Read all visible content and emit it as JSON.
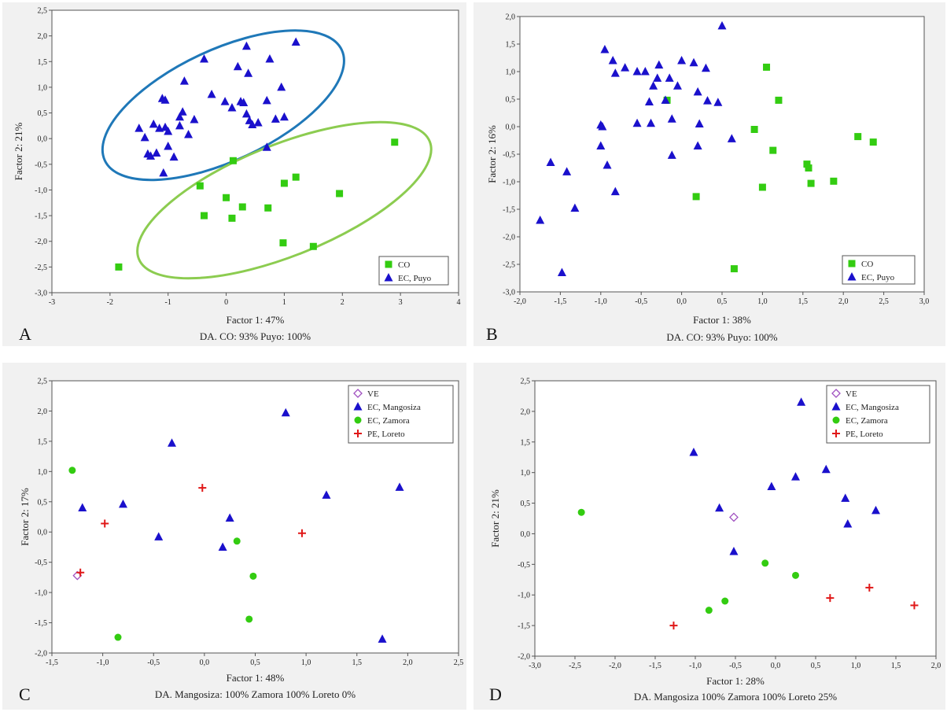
{
  "colors": {
    "green": "#33cc11",
    "blue": "#1a10cc",
    "purple": "#a050c0",
    "red": "#e01818",
    "ellipse_blue": "#1f78b8",
    "ellipse_green": "#8ccc50"
  },
  "chart_data": [
    {
      "panel_label": "A",
      "type": "scatter",
      "xlabel": "Factor 1: 47%",
      "ylabel": "Factor 2: 21%",
      "subtitle": "DA. CO: 93%   Puyo: 100%",
      "xlim": [
        -3,
        4
      ],
      "ylim": [
        -3.0,
        2.5
      ],
      "xticks": [
        "-3",
        "-2",
        "-1",
        "0",
        "1",
        "2",
        "3",
        "4"
      ],
      "yticks": [
        "-3,0",
        "-2,5",
        "-2,0",
        "-1,5",
        "-1,0",
        "-0,5",
        "0,0",
        "0,5",
        "1,0",
        "1,5",
        "2,0",
        "2,5"
      ],
      "legend": {
        "position": "bottom-right",
        "entries": [
          "CO",
          "EC, Puyo"
        ]
      },
      "series": [
        {
          "name": "CO",
          "marker": "square",
          "color": "#33cc11",
          "x": [
            2.9,
            0.12,
            -0.45,
            0.0,
            1.0,
            1.2,
            1.95,
            0.28,
            -0.38,
            0.1,
            0.72,
            0.98,
            1.5,
            -1.85
          ],
          "y": [
            -0.07,
            -0.43,
            -0.92,
            -1.15,
            -0.87,
            -0.75,
            -1.07,
            -1.33,
            -1.5,
            -1.55,
            -1.35,
            -2.03,
            -2.1,
            -2.5
          ]
        },
        {
          "name": "EC, Puyo",
          "marker": "triangle",
          "color": "#1a10cc",
          "x": [
            -1.5,
            -1.4,
            -1.35,
            -1.3,
            -1.25,
            -1.1,
            -1.05,
            -1.0,
            -1.08,
            -0.9,
            -0.8,
            -0.75,
            -0.72,
            -0.65,
            -0.55,
            -0.38,
            -0.25,
            -0.02,
            0.1,
            0.25,
            0.3,
            0.35,
            0.4,
            0.45,
            0.55,
            0.7,
            0.75,
            0.85,
            0.95,
            1.0,
            1.2,
            0.2,
            0.35,
            -1.05,
            0.7,
            -1.15,
            -1.2,
            -1.0,
            -0.8,
            0.38
          ],
          "y": [
            0.2,
            0.02,
            -0.3,
            -0.34,
            0.28,
            0.78,
            0.75,
            0.14,
            -0.67,
            -0.36,
            0.42,
            0.52,
            1.12,
            0.08,
            0.37,
            1.55,
            0.86,
            0.72,
            0.6,
            0.72,
            0.7,
            0.48,
            0.35,
            0.27,
            0.31,
            0.74,
            1.55,
            0.38,
            1.0,
            0.42,
            1.88,
            1.4,
            1.8,
            0.22,
            -0.17,
            0.2,
            -0.28,
            -0.15,
            0.25,
            1.27
          ]
        }
      ],
      "ellipses": [
        {
          "color": "#1f78b8",
          "cx": -0.05,
          "cy": 0.65,
          "rx": 2.25,
          "ry": 1.08,
          "angle": 25
        },
        {
          "color": "#8ccc50",
          "cx": 1.0,
          "cy": -1.2,
          "rx": 2.7,
          "ry": 1.08,
          "angle": 22
        }
      ]
    },
    {
      "panel_label": "B",
      "type": "scatter",
      "xlabel": "Factor 1: 38%",
      "ylabel": "Factor 2: 16%",
      "subtitle": "DA. CO: 93%   Puyo: 100%",
      "xlim": [
        -2.0,
        3.0
      ],
      "ylim": [
        -3.0,
        2.0
      ],
      "xticks": [
        "-2,0",
        "-1,5",
        "-1,0",
        "-0,5",
        "0,0",
        "0,5",
        "1,0",
        "1,5",
        "2,0",
        "2,5",
        "3,0"
      ],
      "yticks": [
        "-3,0",
        "-2,5",
        "-2,0",
        "-1,5",
        "-1,0",
        "-0,5",
        "0,0",
        "0,5",
        "1,0",
        "1,5",
        "2,0"
      ],
      "legend": {
        "position": "bottom-right",
        "entries": [
          "CO",
          "EC, Puyo"
        ]
      },
      "series": [
        {
          "name": "CO",
          "marker": "square",
          "color": "#33cc11",
          "x": [
            1.05,
            1.2,
            -0.18,
            0.9,
            1.13,
            2.18,
            2.37,
            1.55,
            1.57,
            1.6,
            1.88,
            1.0,
            0.18,
            0.65
          ],
          "y": [
            1.08,
            0.48,
            0.48,
            -0.05,
            -0.43,
            -0.18,
            -0.28,
            -0.68,
            -0.75,
            -1.03,
            -0.99,
            -1.1,
            -1.27,
            -2.58
          ]
        },
        {
          "name": "EC, Puyo",
          "marker": "triangle",
          "color": "#1a10cc",
          "x": [
            0.5,
            -0.95,
            -0.85,
            -0.82,
            -0.7,
            -0.55,
            -0.45,
            -0.3,
            -0.28,
            -0.15,
            -0.05,
            0.0,
            0.15,
            0.3,
            -0.35,
            -0.4,
            -0.2,
            0.2,
            0.32,
            0.45,
            -1.0,
            -0.98,
            -0.92,
            -0.55,
            -0.38,
            -0.12,
            -0.12,
            0.22,
            0.2,
            0.62,
            -1.42,
            -1.62,
            -1.32,
            -0.82,
            -1.75,
            -1.48,
            -1.0
          ],
          "y": [
            1.83,
            1.4,
            1.2,
            0.97,
            1.07,
            1.0,
            1.0,
            0.88,
            1.12,
            0.88,
            0.74,
            1.2,
            1.16,
            1.06,
            0.74,
            0.45,
            0.48,
            0.63,
            0.47,
            0.44,
            0.03,
            0.0,
            -0.7,
            0.06,
            0.06,
            0.14,
            -0.52,
            0.05,
            -0.35,
            -0.22,
            -0.82,
            -0.65,
            -1.48,
            -1.18,
            -1.7,
            -2.65,
            -0.35
          ]
        }
      ]
    },
    {
      "panel_label": "C",
      "type": "scatter",
      "xlabel": "Factor 1: 48%",
      "ylabel": "Factor 2: 17%",
      "subtitle": "DA. Mangosiza: 100%   Zamora 100%   Loreto 0%",
      "xlim": [
        -1.5,
        2.5
      ],
      "ylim": [
        -2.0,
        2.5
      ],
      "xticks": [
        "-1,5",
        "-1,0",
        "-0,5",
        "0,0",
        "0,5",
        "1,0",
        "1,5",
        "2,0",
        "2,5"
      ],
      "yticks": [
        "-2,0",
        "-1,5",
        "-1,0",
        "-0,5",
        "0,0",
        "0,5",
        "1,0",
        "1,5",
        "2,0",
        "2,5"
      ],
      "legend": {
        "position": "top-right",
        "entries": [
          "VE",
          "EC, Mangosiza",
          "EC, Zamora",
          "PE, Loreto"
        ]
      },
      "series": [
        {
          "name": "VE",
          "marker": "diamond",
          "color": "#a050c0",
          "x": [
            -1.25
          ],
          "y": [
            -0.72
          ]
        },
        {
          "name": "EC, Mangosiza",
          "marker": "triangle",
          "color": "#1a10cc",
          "x": [
            0.8,
            -0.32,
            -1.2,
            -0.8,
            -0.45,
            0.18,
            0.25,
            1.2,
            1.92,
            1.75
          ],
          "y": [
            1.97,
            1.47,
            0.4,
            0.46,
            -0.08,
            -0.25,
            0.23,
            0.61,
            0.74,
            -1.77
          ]
        },
        {
          "name": "EC, Zamora",
          "marker": "circle",
          "color": "#33cc11",
          "x": [
            -1.3,
            0.32,
            0.48,
            0.44,
            -0.85
          ],
          "y": [
            1.02,
            -0.15,
            -0.73,
            -1.44,
            -1.74
          ]
        },
        {
          "name": "PE, Loreto",
          "marker": "cross",
          "color": "#e01818",
          "x": [
            -0.02,
            -0.98,
            0.96,
            -1.22
          ],
          "y": [
            0.73,
            0.14,
            -0.02,
            -0.67
          ]
        }
      ]
    },
    {
      "panel_label": "D",
      "type": "scatter",
      "xlabel": "Factor 1: 28%",
      "ylabel": "Factor 2: 21%",
      "subtitle": "DA. Mangosiza 100%  Zamora 100%  Loreto 25%",
      "xlim": [
        -3.0,
        2.0
      ],
      "ylim": [
        -2.0,
        2.5
      ],
      "xticks": [
        "-3,0",
        "-2,5",
        "-2,0",
        "-1,5",
        "-1,0",
        "-0,5",
        "0,0",
        "0,5",
        "1,0",
        "1,5",
        "2,0"
      ],
      "yticks": [
        "-2,0",
        "-1,5",
        "-1,0",
        "-0,5",
        "0,0",
        "0,5",
        "1,0",
        "1,5",
        "2,0",
        "2,5"
      ],
      "legend": {
        "position": "top-right",
        "entries": [
          "VE",
          "EC, Mangosiza",
          "EC, Zamora",
          "PE, Loreto"
        ]
      },
      "series": [
        {
          "name": "VE",
          "marker": "diamond",
          "color": "#a050c0",
          "x": [
            -0.52
          ],
          "y": [
            0.27
          ]
        },
        {
          "name": "EC, Mangosiza",
          "marker": "triangle",
          "color": "#1a10cc",
          "x": [
            0.32,
            -1.02,
            0.63,
            -0.05,
            0.25,
            -0.7,
            0.87,
            1.25,
            0.9,
            -0.52
          ],
          "y": [
            2.15,
            1.33,
            1.05,
            0.77,
            0.93,
            0.42,
            0.58,
            0.38,
            0.16,
            -0.29
          ]
        },
        {
          "name": "EC, Zamora",
          "marker": "circle",
          "color": "#33cc11",
          "x": [
            -2.42,
            -0.13,
            0.25,
            -0.63,
            -0.83
          ],
          "y": [
            0.35,
            -0.48,
            -0.68,
            -1.1,
            -1.25
          ]
        },
        {
          "name": "PE, Loreto",
          "marker": "cross",
          "color": "#e01818",
          "x": [
            0.68,
            1.17,
            1.73,
            -1.27
          ],
          "y": [
            -1.05,
            -0.88,
            -1.17,
            -1.5
          ]
        }
      ]
    }
  ]
}
